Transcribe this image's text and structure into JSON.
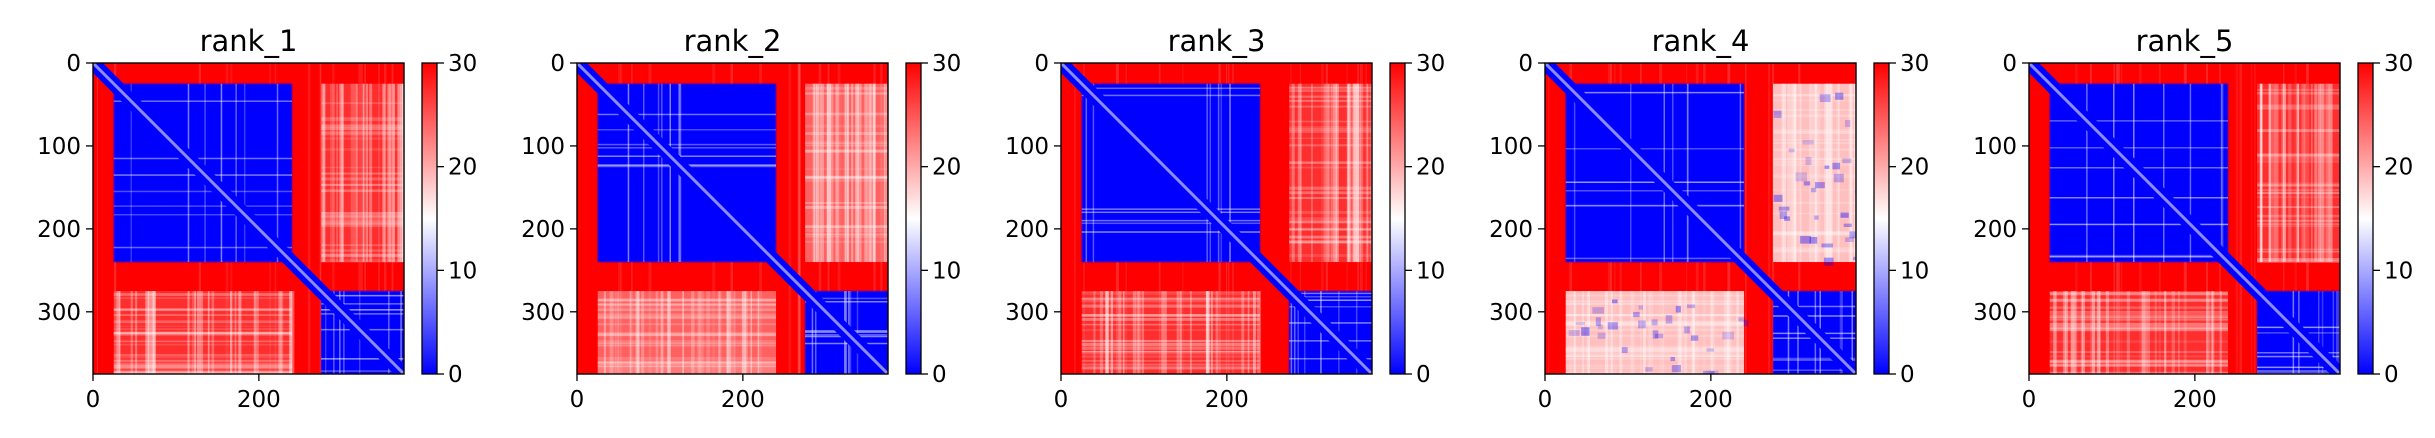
{
  "chart_data": [
    {
      "type": "heatmap",
      "title": "rank_1",
      "xticks": [
        0,
        200
      ],
      "yticks": [
        0,
        100,
        200,
        300
      ],
      "xlim": [
        0,
        375
      ],
      "ylim": [
        375,
        0
      ],
      "colorbar": {
        "ticks": [
          0,
          10,
          20,
          30
        ],
        "range": [
          0,
          30
        ],
        "colormap": "bwr"
      },
      "blocks": [
        {
          "start": 25,
          "end": 240
        },
        {
          "start": 275,
          "end": 375
        }
      ],
      "inter_block_level": "high",
      "offdiag_stripes": false
    },
    {
      "type": "heatmap",
      "title": "rank_2",
      "xticks": [
        0,
        200
      ],
      "yticks": [
        0,
        100,
        200,
        300
      ],
      "xlim": [
        0,
        375
      ],
      "ylim": [
        375,
        0
      ],
      "colorbar": {
        "ticks": [
          0,
          10,
          20,
          30
        ],
        "range": [
          0,
          30
        ],
        "colormap": "bwr"
      },
      "blocks": [
        {
          "start": 25,
          "end": 240
        },
        {
          "start": 275,
          "end": 375
        }
      ],
      "inter_block_level": "medium",
      "offdiag_stripes": false
    },
    {
      "type": "heatmap",
      "title": "rank_3",
      "xticks": [
        0,
        200
      ],
      "yticks": [
        0,
        100,
        200,
        300
      ],
      "xlim": [
        0,
        375
      ],
      "ylim": [
        375,
        0
      ],
      "colorbar": {
        "ticks": [
          0,
          10,
          20,
          30
        ],
        "range": [
          0,
          30
        ],
        "colormap": "bwr"
      },
      "blocks": [
        {
          "start": 25,
          "end": 240
        },
        {
          "start": 275,
          "end": 375
        }
      ],
      "inter_block_level": "high",
      "offdiag_stripes": false
    },
    {
      "type": "heatmap",
      "title": "rank_4",
      "xticks": [
        0,
        200
      ],
      "yticks": [
        0,
        100,
        200,
        300
      ],
      "xlim": [
        0,
        375
      ],
      "ylim": [
        375,
        0
      ],
      "colorbar": {
        "ticks": [
          0,
          10,
          20,
          30
        ],
        "range": [
          0,
          30
        ],
        "colormap": "bwr"
      },
      "blocks": [
        {
          "start": 25,
          "end": 240
        },
        {
          "start": 275,
          "end": 375
        }
      ],
      "inter_block_level": "low",
      "offdiag_stripes": true
    },
    {
      "type": "heatmap",
      "title": "rank_5",
      "xticks": [
        0,
        200
      ],
      "yticks": [
        0,
        100,
        200,
        300
      ],
      "xlim": [
        0,
        375
      ],
      "ylim": [
        375,
        0
      ],
      "colorbar": {
        "ticks": [
          0,
          10,
          20,
          30
        ],
        "range": [
          0,
          30
        ],
        "colormap": "bwr"
      },
      "blocks": [
        {
          "start": 25,
          "end": 240
        },
        {
          "start": 275,
          "end": 375
        }
      ],
      "inter_block_level": "high",
      "offdiag_stripes": false
    }
  ],
  "colors": {
    "high": "#ff0000",
    "mid": "#ffffff",
    "low": "#0000ff",
    "axis": "#000000"
  }
}
